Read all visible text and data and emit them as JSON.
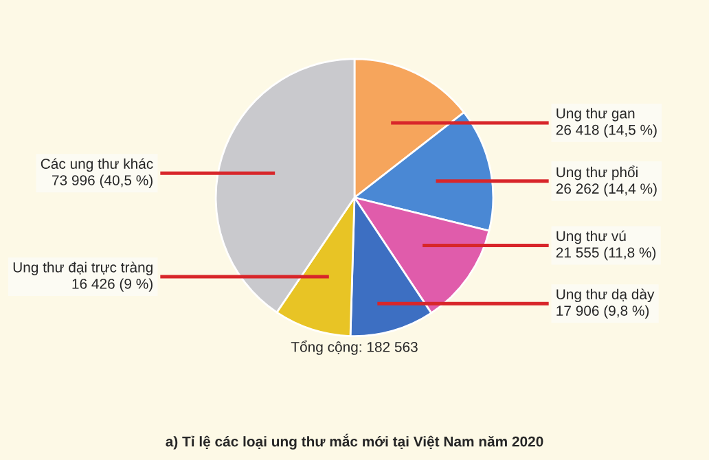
{
  "chart_data": {
    "type": "pie",
    "categories": [
      "Ung thư gan",
      "Ung thư phổi",
      "Ung thư vú",
      "Ung thư dạ dày",
      "Ung thư đại trực tràng",
      "Các ung thư khác"
    ],
    "values": [
      26418,
      26262,
      21555,
      17906,
      16426,
      73996
    ],
    "value_labels": [
      "26 418 (14,5 %)",
      "26 262 (14,4 %)",
      "21 555 (11,8 %)",
      "17 906 (9,8 %)",
      "16 426 (9 %)",
      "73 996 (40,5 %)"
    ],
    "colors": [
      "#f6a55c",
      "#4a88d4",
      "#e05cab",
      "#3d6fc2",
      "#e8c425",
      "#c9c9cd"
    ],
    "annotations": [
      "Tổng cộng: 182 563",
      "a) Tỉ lệ các loại ung thư mắc mới tại Việt Nam năm 2020"
    ]
  }
}
